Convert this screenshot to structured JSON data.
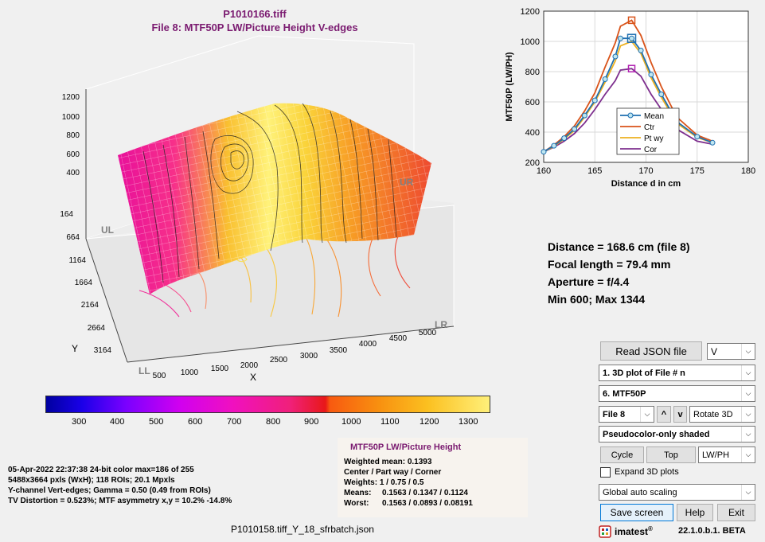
{
  "main_plot": {
    "title_line1": "P1010166.tiff",
    "title_line2": "File 8:   MTF50P LW/Picture Height   V-edges",
    "z_ticks": [
      "1200",
      "1000",
      "800",
      "600",
      "400"
    ],
    "y_ticks": [
      "164",
      "664",
      "1164",
      "1664",
      "2164",
      "2664",
      "3164"
    ],
    "x_ticks": [
      "500",
      "1000",
      "1500",
      "2000",
      "2500",
      "3000",
      "3500",
      "4000",
      "4500",
      "5000"
    ],
    "x_label": "X",
    "y_label": "Y",
    "corner_ul": "UL",
    "corner_ll": "LL",
    "corner_lr": "LR",
    "corner_ur": "UR"
  },
  "colorbar": {
    "ticks": [
      "300",
      "400",
      "500",
      "600",
      "700",
      "800",
      "900",
      "1000",
      "1100",
      "1200",
      "1300"
    ]
  },
  "chart_data": {
    "type": "line",
    "x": [
      160,
      161,
      162,
      163,
      164,
      165,
      166,
      167,
      167.5,
      168.6,
      169.5,
      170.5,
      171.5,
      173,
      175,
      176.5
    ],
    "xlabel": "Distance d in cm",
    "ylabel": "MTF50P  (LW/PH)",
    "xlim": [
      160,
      180
    ],
    "ylim": [
      200,
      1200
    ],
    "x_ticks": [
      "160",
      "165",
      "170",
      "175",
      "180"
    ],
    "y_ticks": [
      "200",
      "400",
      "600",
      "800",
      "1000",
      "1200"
    ],
    "grid": true,
    "legend_position": "inside-bottom-center",
    "series": [
      {
        "name": "Mean",
        "color": "#1f6fb0",
        "marker": "circle",
        "values": [
          270,
          310,
          360,
          420,
          510,
          610,
          750,
          900,
          1020,
          1020,
          940,
          780,
          650,
          470,
          370,
          330
        ]
      },
      {
        "name": "Ctr",
        "color": "#d95319",
        "values": [
          270,
          315,
          370,
          440,
          540,
          660,
          830,
          990,
          1100,
          1140,
          1040,
          860,
          700,
          500,
          380,
          340
        ]
      },
      {
        "name": "Pt wy",
        "color": "#edb120",
        "values": [
          270,
          305,
          355,
          410,
          500,
          600,
          730,
          870,
          970,
          1000,
          920,
          760,
          630,
          460,
          365,
          330
        ]
      },
      {
        "name": "Cor",
        "color": "#7e2f8e",
        "values": [
          270,
          300,
          340,
          390,
          460,
          550,
          650,
          740,
          810,
          820,
          770,
          650,
          550,
          420,
          340,
          320
        ]
      }
    ],
    "highlight": {
      "x": 168.6,
      "mean": 1020,
      "ctr": 1140,
      "cor": 820
    }
  },
  "summary": {
    "distance": "Distance = 168.6 cm  (file 8)",
    "focal": "Focal length = 79.4 mm",
    "aperture": "Aperture = f/4.4",
    "minmax": "Min 600;  Max 1344"
  },
  "image_info": {
    "line1": "05-Apr-2022 22:37:38   24-bit color  max=186 of 255",
    "line2": "5488x3664 pxls (WxH);   118 ROIs;  20.1 Mpxls",
    "line3": "Y-channel  Vert-edges;   Gamma = 0.50  (0.49 from ROIs)",
    "line4": "TV Distortion = 0.523%;  MTF asymmetry x,y = 10.2%  -14.8%"
  },
  "mtf_panel": {
    "title": "MTF50P LW/Picture Height",
    "weighted": "Weighted mean: 0.1393",
    "labels": "Center / Part way / Corner",
    "weights": "Weights: 1 / 0.75 / 0.5",
    "means_label": "Means:",
    "means_values": "0.1563 / 0.1347 / 0.1124",
    "worst_label": "Worst:",
    "worst_values": "0.1563 / 0.0893 / 0.08191"
  },
  "footer_filename": "P1010158.tiff_Y_18_sfrbatch.json",
  "controls": {
    "read_json": "Read JSON file",
    "channel": "V",
    "plot_type": "1. 3D plot of File # n",
    "metric": "6.  MTF50P",
    "file": "File 8",
    "up": "^",
    "down": "v",
    "rotate": "Rotate 3D",
    "shading": "Pseudocolor-only shaded",
    "cycle": "Cycle",
    "top": "Top",
    "units": "LW/PH",
    "expand_label": "Expand 3D plots",
    "scaling": "Global auto scaling",
    "save": "Save screen",
    "help": "Help",
    "exit": "Exit",
    "brand": "imatest",
    "version": "22.1.0.b.1. BETA"
  },
  "colors": {
    "title": "#7a1a70",
    "accent": "#0078d7"
  }
}
